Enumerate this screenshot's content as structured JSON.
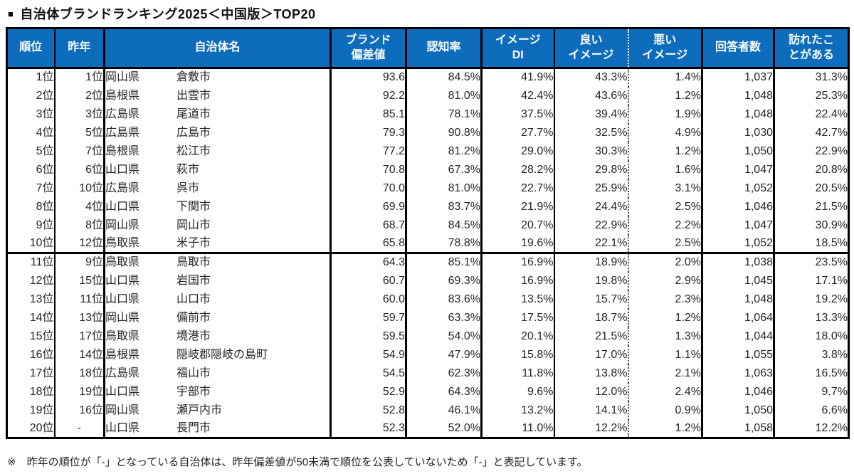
{
  "colors": {
    "header_bg": "#0e6cbd",
    "header_text": "#ffffff",
    "body_text": "#262626",
    "border": "#000000"
  },
  "title": {
    "bullet": "■",
    "text": "自治体ブランドランキング2025＜中国版＞TOP20"
  },
  "table": {
    "headers": [
      "順位",
      "昨年",
      "自治体名",
      "ブランド\n偏差値",
      "認知率",
      "イメージ\nDI",
      "良い\nイメージ",
      "悪い\nイメージ",
      "回答者数",
      "訪れたこ\nとがある"
    ],
    "rows": [
      {
        "rank": "1位",
        "last_year": "1位",
        "prefecture": "岡山県",
        "city": "倉敷市",
        "brand_score": "93.6",
        "recognition_rate": "84.5%",
        "image_di": "41.9%",
        "good_image": "43.3%",
        "bad_image": "1.4%",
        "respondents": "1,037",
        "visited": "31.3%"
      },
      {
        "rank": "2位",
        "last_year": "2位",
        "prefecture": "島根県",
        "city": "出雲市",
        "brand_score": "92.2",
        "recognition_rate": "81.0%",
        "image_di": "42.4%",
        "good_image": "43.6%",
        "bad_image": "1.2%",
        "respondents": "1,048",
        "visited": "25.3%"
      },
      {
        "rank": "3位",
        "last_year": "3位",
        "prefecture": "広島県",
        "city": "尾道市",
        "brand_score": "85.1",
        "recognition_rate": "78.1%",
        "image_di": "37.5%",
        "good_image": "39.4%",
        "bad_image": "1.9%",
        "respondents": "1,048",
        "visited": "22.4%"
      },
      {
        "rank": "4位",
        "last_year": "5位",
        "prefecture": "広島県",
        "city": "広島市",
        "brand_score": "79.3",
        "recognition_rate": "90.8%",
        "image_di": "27.7%",
        "good_image": "32.5%",
        "bad_image": "4.9%",
        "respondents": "1,030",
        "visited": "42.7%"
      },
      {
        "rank": "5位",
        "last_year": "7位",
        "prefecture": "島根県",
        "city": "松江市",
        "brand_score": "77.2",
        "recognition_rate": "81.2%",
        "image_di": "29.0%",
        "good_image": "30.3%",
        "bad_image": "1.2%",
        "respondents": "1,050",
        "visited": "22.9%"
      },
      {
        "rank": "6位",
        "last_year": "6位",
        "prefecture": "山口県",
        "city": "萩市",
        "brand_score": "70.8",
        "recognition_rate": "67.3%",
        "image_di": "28.2%",
        "good_image": "29.8%",
        "bad_image": "1.6%",
        "respondents": "1,047",
        "visited": "20.8%"
      },
      {
        "rank": "7位",
        "last_year": "10位",
        "prefecture": "広島県",
        "city": "呉市",
        "brand_score": "70.0",
        "recognition_rate": "81.0%",
        "image_di": "22.7%",
        "good_image": "25.9%",
        "bad_image": "3.1%",
        "respondents": "1,052",
        "visited": "20.5%"
      },
      {
        "rank": "8位",
        "last_year": "4位",
        "prefecture": "山口県",
        "city": "下関市",
        "brand_score": "69.9",
        "recognition_rate": "83.7%",
        "image_di": "21.9%",
        "good_image": "24.4%",
        "bad_image": "2.5%",
        "respondents": "1,046",
        "visited": "21.5%"
      },
      {
        "rank": "9位",
        "last_year": "8位",
        "prefecture": "岡山県",
        "city": "岡山市",
        "brand_score": "68.7",
        "recognition_rate": "84.5%",
        "image_di": "20.7%",
        "good_image": "22.9%",
        "bad_image": "2.2%",
        "respondents": "1,047",
        "visited": "30.9%"
      },
      {
        "rank": "10位",
        "last_year": "12位",
        "prefecture": "鳥取県",
        "city": "米子市",
        "brand_score": "65.8",
        "recognition_rate": "78.8%",
        "image_di": "19.6%",
        "good_image": "22.1%",
        "bad_image": "2.5%",
        "respondents": "1,052",
        "visited": "18.5%"
      },
      {
        "rank": "11位",
        "last_year": "9位",
        "prefecture": "鳥取県",
        "city": "鳥取市",
        "brand_score": "64.3",
        "recognition_rate": "85.1%",
        "image_di": "16.9%",
        "good_image": "18.9%",
        "bad_image": "2.0%",
        "respondents": "1,038",
        "visited": "23.5%"
      },
      {
        "rank": "12位",
        "last_year": "15位",
        "prefecture": "山口県",
        "city": "岩国市",
        "brand_score": "60.7",
        "recognition_rate": "69.3%",
        "image_di": "16.9%",
        "good_image": "19.8%",
        "bad_image": "2.9%",
        "respondents": "1,045",
        "visited": "17.1%"
      },
      {
        "rank": "13位",
        "last_year": "11位",
        "prefecture": "山口県",
        "city": "山口市",
        "brand_score": "60.0",
        "recognition_rate": "83.6%",
        "image_di": "13.5%",
        "good_image": "15.7%",
        "bad_image": "2.3%",
        "respondents": "1,048",
        "visited": "19.2%"
      },
      {
        "rank": "14位",
        "last_year": "13位",
        "prefecture": "岡山県",
        "city": "備前市",
        "brand_score": "59.7",
        "recognition_rate": "63.3%",
        "image_di": "17.5%",
        "good_image": "18.7%",
        "bad_image": "1.2%",
        "respondents": "1,064",
        "visited": "13.3%"
      },
      {
        "rank": "15位",
        "last_year": "17位",
        "prefecture": "鳥取県",
        "city": "境港市",
        "brand_score": "59.5",
        "recognition_rate": "54.0%",
        "image_di": "20.1%",
        "good_image": "21.5%",
        "bad_image": "1.3%",
        "respondents": "1,044",
        "visited": "18.0%"
      },
      {
        "rank": "16位",
        "last_year": "14位",
        "prefecture": "島根県",
        "city": "隠岐郡隠岐の島町",
        "brand_score": "54.9",
        "recognition_rate": "47.9%",
        "image_di": "15.8%",
        "good_image": "17.0%",
        "bad_image": "1.1%",
        "respondents": "1,055",
        "visited": "3.8%"
      },
      {
        "rank": "17位",
        "last_year": "18位",
        "prefecture": "広島県",
        "city": "福山市",
        "brand_score": "54.5",
        "recognition_rate": "62.3%",
        "image_di": "11.8%",
        "good_image": "13.8%",
        "bad_image": "2.1%",
        "respondents": "1,063",
        "visited": "16.5%"
      },
      {
        "rank": "18位",
        "last_year": "19位",
        "prefecture": "山口県",
        "city": "宇部市",
        "brand_score": "52.9",
        "recognition_rate": "64.3%",
        "image_di": "9.6%",
        "good_image": "12.0%",
        "bad_image": "2.4%",
        "respondents": "1,046",
        "visited": "9.7%"
      },
      {
        "rank": "19位",
        "last_year": "16位",
        "prefecture": "岡山県",
        "city": "瀬戸内市",
        "brand_score": "52.8",
        "recognition_rate": "46.1%",
        "image_di": "13.2%",
        "good_image": "14.1%",
        "bad_image": "0.9%",
        "respondents": "1,050",
        "visited": "6.6%"
      },
      {
        "rank": "20位",
        "last_year": "-",
        "prefecture": "山口県",
        "city": "長門市",
        "brand_score": "52.3",
        "recognition_rate": "52.0%",
        "image_di": "11.0%",
        "good_image": "12.2%",
        "bad_image": "1.2%",
        "respondents": "1,058",
        "visited": "12.2%"
      }
    ]
  },
  "footnote": "※　昨年の順位が「-」となっている自治体は、昨年偏差値が50未満で順位を公表していないため「-」と表記しています。"
}
